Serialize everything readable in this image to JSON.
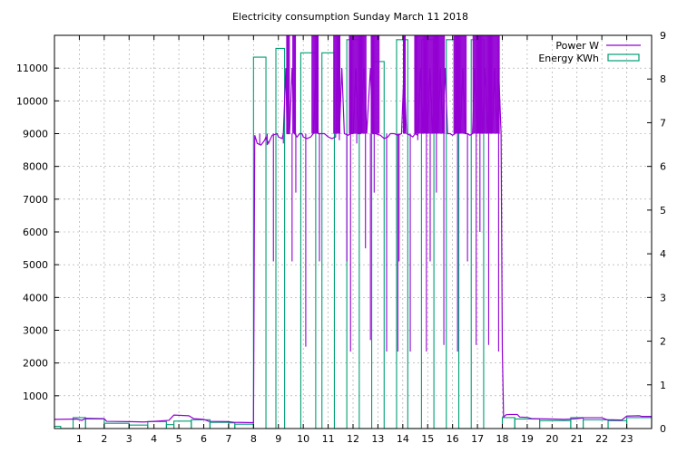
{
  "chart_data": {
    "type": "line",
    "title": "Electricity consumption Sunday March 11 2018",
    "xlim": [
      0,
      24
    ],
    "x_ticks": [
      1,
      2,
      3,
      4,
      5,
      6,
      7,
      8,
      9,
      10,
      11,
      12,
      13,
      14,
      15,
      16,
      17,
      18,
      19,
      20,
      21,
      22,
      23
    ],
    "y_left": {
      "lim": [
        0,
        12000
      ],
      "ticks": [
        1000,
        2000,
        3000,
        4000,
        5000,
        6000,
        7000,
        8000,
        9000,
        10000,
        11000
      ]
    },
    "y_right": {
      "lim": [
        0,
        9
      ],
      "ticks": [
        0,
        1,
        2,
        3,
        4,
        5,
        6,
        7,
        8,
        9
      ]
    },
    "grid": true,
    "legend_position": "top-right",
    "series": [
      {
        "name": "Power W",
        "axis": "left",
        "color": "#9400d3",
        "style": "line",
        "points": [
          [
            0,
            280
          ],
          [
            0.9,
            290
          ],
          [
            1.1,
            250
          ],
          [
            1.25,
            310
          ],
          [
            2.0,
            300
          ],
          [
            2.1,
            220
          ],
          [
            3.0,
            210
          ],
          [
            3.6,
            200
          ],
          [
            4.0,
            220
          ],
          [
            4.6,
            250
          ],
          [
            4.8,
            410
          ],
          [
            5.4,
            390
          ],
          [
            5.6,
            300
          ],
          [
            6.0,
            280
          ],
          [
            6.2,
            220
          ],
          [
            7.0,
            210
          ],
          [
            7.2,
            190
          ],
          [
            8.0,
            180
          ],
          [
            8.05,
            8950
          ],
          [
            8.15,
            8700
          ],
          [
            8.3,
            8650
          ],
          [
            8.45,
            8800
          ],
          [
            8.5,
            8900
          ],
          [
            8.6,
            8700
          ],
          [
            8.75,
            8950
          ],
          [
            8.95,
            9000
          ],
          [
            9.0,
            8900
          ],
          [
            9.15,
            8850
          ],
          [
            9.2,
            9000
          ],
          [
            9.3,
            11000
          ],
          [
            9.35,
            9000
          ],
          [
            9.45,
            9000
          ],
          [
            9.55,
            11000
          ],
          [
            9.65,
            9000
          ],
          [
            9.75,
            8900
          ],
          [
            9.85,
            9000
          ],
          [
            9.95,
            9000
          ],
          [
            10.0,
            8900
          ],
          [
            10.15,
            8850
          ],
          [
            10.3,
            8900
          ],
          [
            10.4,
            9000
          ],
          [
            10.5,
            11000
          ],
          [
            10.6,
            9000
          ],
          [
            10.75,
            9000
          ],
          [
            10.85,
            9000
          ],
          [
            11.0,
            8900
          ],
          [
            11.15,
            8850
          ],
          [
            11.3,
            8900
          ],
          [
            11.35,
            11000
          ],
          [
            11.45,
            9000
          ],
          [
            11.55,
            11000
          ],
          [
            11.65,
            9000
          ],
          [
            11.8,
            8950
          ],
          [
            11.9,
            9000
          ],
          [
            12.0,
            9000
          ],
          [
            12.1,
            11000
          ],
          [
            12.2,
            9000
          ],
          [
            12.3,
            9000
          ],
          [
            12.45,
            11000
          ],
          [
            12.55,
            9000
          ],
          [
            12.7,
            11000
          ],
          [
            12.8,
            9000
          ],
          [
            12.9,
            9000
          ],
          [
            13.1,
            8950
          ],
          [
            13.25,
            8850
          ],
          [
            13.4,
            8900
          ],
          [
            13.5,
            9000
          ],
          [
            13.65,
            9000
          ],
          [
            13.8,
            8950
          ],
          [
            13.95,
            9000
          ],
          [
            14.05,
            11000
          ],
          [
            14.15,
            9000
          ],
          [
            14.3,
            8950
          ],
          [
            14.4,
            8900
          ],
          [
            14.5,
            9000
          ],
          [
            14.6,
            8950
          ],
          [
            14.7,
            11000
          ],
          [
            14.8,
            9000
          ],
          [
            14.9,
            11000
          ],
          [
            15.0,
            9000
          ],
          [
            15.1,
            11000
          ],
          [
            15.2,
            9000
          ],
          [
            15.3,
            11000
          ],
          [
            15.4,
            9000
          ],
          [
            15.5,
            11000
          ],
          [
            15.6,
            9000
          ],
          [
            15.7,
            11000
          ],
          [
            15.8,
            9000
          ],
          [
            15.9,
            9000
          ],
          [
            16.0,
            8950
          ],
          [
            16.1,
            9000
          ],
          [
            16.2,
            11000
          ],
          [
            16.3,
            9000
          ],
          [
            16.4,
            11000
          ],
          [
            16.5,
            9000
          ],
          [
            16.6,
            9000
          ],
          [
            16.7,
            8950
          ],
          [
            16.8,
            9000
          ],
          [
            16.9,
            11000
          ],
          [
            17.0,
            9000
          ],
          [
            17.1,
            11000
          ],
          [
            17.2,
            9000
          ],
          [
            17.3,
            11000
          ],
          [
            17.4,
            9000
          ],
          [
            17.5,
            11000
          ],
          [
            17.6,
            9000
          ],
          [
            17.7,
            11000
          ],
          [
            17.8,
            9000
          ],
          [
            17.85,
            11000
          ],
          [
            17.95,
            9000
          ],
          [
            18.0,
            2400
          ],
          [
            18.05,
            350
          ],
          [
            18.15,
            420
          ],
          [
            18.3,
            430
          ],
          [
            18.6,
            430
          ],
          [
            18.7,
            350
          ],
          [
            19.0,
            340
          ],
          [
            19.2,
            300
          ],
          [
            20.0,
            290
          ],
          [
            20.5,
            280
          ],
          [
            21.0,
            300
          ],
          [
            21.3,
            330
          ],
          [
            22.0,
            330
          ],
          [
            22.2,
            270
          ],
          [
            22.8,
            260
          ],
          [
            23.0,
            380
          ],
          [
            23.5,
            390
          ],
          [
            23.6,
            370
          ],
          [
            24.0,
            370
          ]
        ],
        "dips": [
          [
            8.25,
            8650
          ],
          [
            8.55,
            8650
          ],
          [
            8.8,
            5100
          ],
          [
            9.2,
            8700
          ],
          [
            9.55,
            5100
          ],
          [
            9.7,
            7200
          ],
          [
            10.1,
            2500
          ],
          [
            10.65,
            5100
          ],
          [
            11.45,
            8800
          ],
          [
            11.75,
            5100
          ],
          [
            11.9,
            2350
          ],
          [
            12.15,
            8700
          ],
          [
            12.5,
            5500
          ],
          [
            12.7,
            2700
          ],
          [
            12.85,
            7200
          ],
          [
            13.35,
            2350
          ],
          [
            13.8,
            2350
          ],
          [
            13.85,
            5100
          ],
          [
            14.3,
            2350
          ],
          [
            14.6,
            8800
          ],
          [
            14.95,
            2350
          ],
          [
            15.1,
            5100
          ],
          [
            15.35,
            7200
          ],
          [
            15.65,
            2550
          ],
          [
            16.2,
            2350
          ],
          [
            16.6,
            5100
          ],
          [
            16.95,
            2550
          ],
          [
            17.1,
            6000
          ],
          [
            17.45,
            2550
          ],
          [
            17.85,
            2350
          ]
        ]
      },
      {
        "name": "Energy KWh",
        "axis": "right",
        "color": "#009e73",
        "style": "impulses-step",
        "steps": [
          [
            0,
            0.05
          ],
          [
            0.25,
            0.0
          ],
          [
            0.75,
            0.25
          ],
          [
            1.25,
            0.22
          ],
          [
            2.0,
            0.12
          ],
          [
            3.0,
            0.08
          ],
          [
            3.75,
            0.16
          ],
          [
            4.5,
            0.09
          ],
          [
            4.8,
            0.17
          ],
          [
            5.5,
            0.2
          ],
          [
            6.25,
            0.14
          ],
          [
            7.0,
            0.13
          ],
          [
            7.25,
            0.1
          ],
          [
            8.0,
            8.5
          ],
          [
            8.5,
            0.0
          ],
          [
            8.9,
            8.7
          ],
          [
            9.25,
            0.0
          ],
          [
            9.9,
            8.6
          ],
          [
            10.5,
            0.0
          ],
          [
            10.75,
            8.6
          ],
          [
            11.25,
            0.0
          ],
          [
            11.75,
            8.9
          ],
          [
            12.25,
            0.0
          ],
          [
            12.75,
            8.4
          ],
          [
            13.25,
            0.0
          ],
          [
            13.75,
            8.9
          ],
          [
            14.2,
            0.0
          ],
          [
            14.75,
            8.9
          ],
          [
            15.25,
            0.0
          ],
          [
            15.75,
            8.9
          ],
          [
            16.25,
            0.0
          ],
          [
            16.75,
            8.9
          ],
          [
            17.25,
            0.0
          ],
          [
            18.0,
            0.25
          ],
          [
            18.5,
            0.22
          ],
          [
            19.5,
            0.18
          ],
          [
            20.75,
            0.25
          ],
          [
            21.25,
            0.2
          ],
          [
            22.25,
            0.18
          ],
          [
            23.0,
            0.25
          ],
          [
            24.0,
            0.25
          ]
        ]
      }
    ]
  }
}
